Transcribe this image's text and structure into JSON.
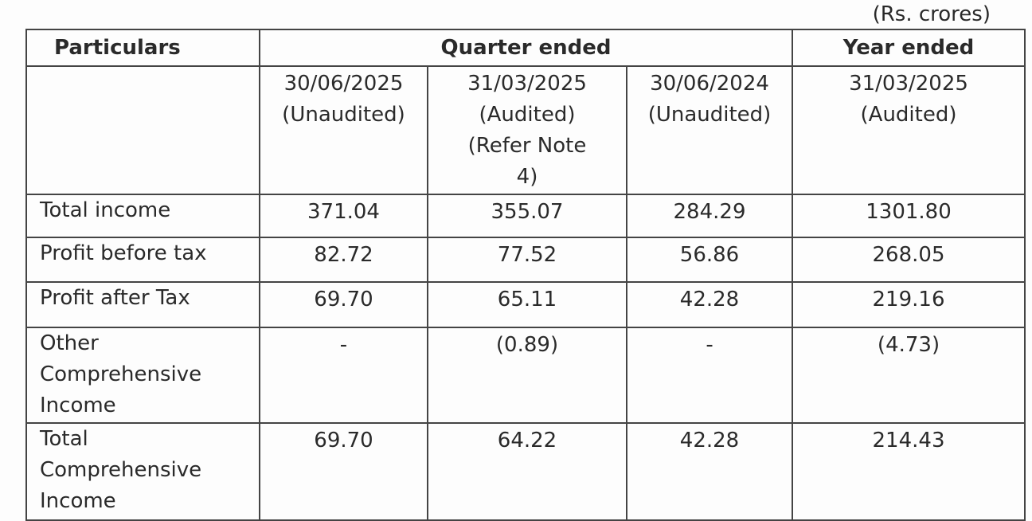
{
  "unit": "(Rs. crores)",
  "header": {
    "particulars": "Particulars",
    "quarter_group": "Quarter ended",
    "year_group": "Year ended"
  },
  "columns": [
    {
      "date": "30/06/2025",
      "status": "(Unaudited)"
    },
    {
      "date": "31/03/2025",
      "status": "(Audited)",
      "note": "(Refer Note 4)"
    },
    {
      "date": "30/06/2024",
      "status": "(Unaudited)"
    },
    {
      "date": "31/03/2025",
      "status": "(Audited)"
    }
  ],
  "rows": [
    {
      "label": "Total income",
      "values": [
        "371.04",
        "355.07",
        "284.29",
        "1301.80"
      ]
    },
    {
      "label": "Profit before tax",
      "values": [
        "82.72",
        "77.52",
        "56.86",
        "268.05"
      ]
    },
    {
      "label": "Profit after Tax",
      "values": [
        "69.70",
        "65.11",
        "42.28",
        "219.16"
      ]
    },
    {
      "label": "Other Comprehensive Income",
      "values": [
        "-",
        "(0.89)",
        "-",
        "(4.73)"
      ]
    },
    {
      "label": "Total Comprehensive Income",
      "values": [
        "69.70",
        "64.22",
        "42.28",
        "214.43"
      ]
    }
  ]
}
